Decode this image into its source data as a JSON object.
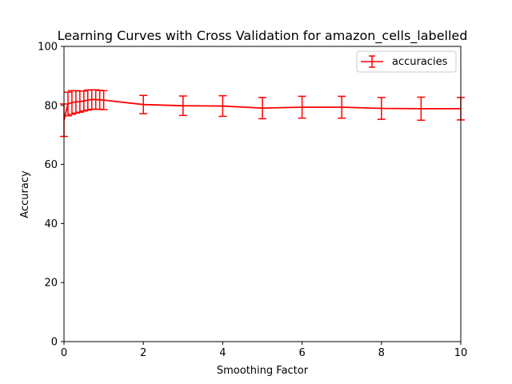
{
  "chart_data": {
    "type": "line",
    "title": "Learning Curves with Cross Validation for amazon_cells_labelled",
    "xlabel": "Smoothing Factor",
    "ylabel": "Accuracy",
    "xlim": [
      0,
      10
    ],
    "ylim": [
      0,
      100
    ],
    "xticks": [
      0,
      2,
      4,
      6,
      8,
      10
    ],
    "yticks": [
      0,
      20,
      40,
      60,
      80,
      100
    ],
    "grid": false,
    "legend_position": "top-right",
    "series": [
      {
        "name": "accuracies",
        "color": "#ff0000",
        "x": [
          0,
          0.1,
          0.2,
          0.3,
          0.4,
          0.5,
          0.6,
          0.7,
          0.8,
          0.9,
          1,
          2,
          3,
          4,
          5,
          6,
          7,
          8,
          9,
          10
        ],
        "y": [
          75.0,
          80.5,
          81.0,
          81.2,
          81.3,
          81.5,
          81.8,
          82.0,
          82.0,
          81.9,
          81.8,
          80.3,
          79.9,
          79.8,
          79.1,
          79.4,
          79.4,
          79.0,
          78.9,
          78.9
        ],
        "err": [
          5.5,
          4.0,
          4.0,
          3.8,
          3.6,
          3.4,
          3.4,
          3.3,
          3.3,
          3.2,
          3.2,
          3.1,
          3.3,
          3.5,
          3.6,
          3.7,
          3.7,
          3.7,
          3.9,
          3.8
        ]
      }
    ]
  }
}
